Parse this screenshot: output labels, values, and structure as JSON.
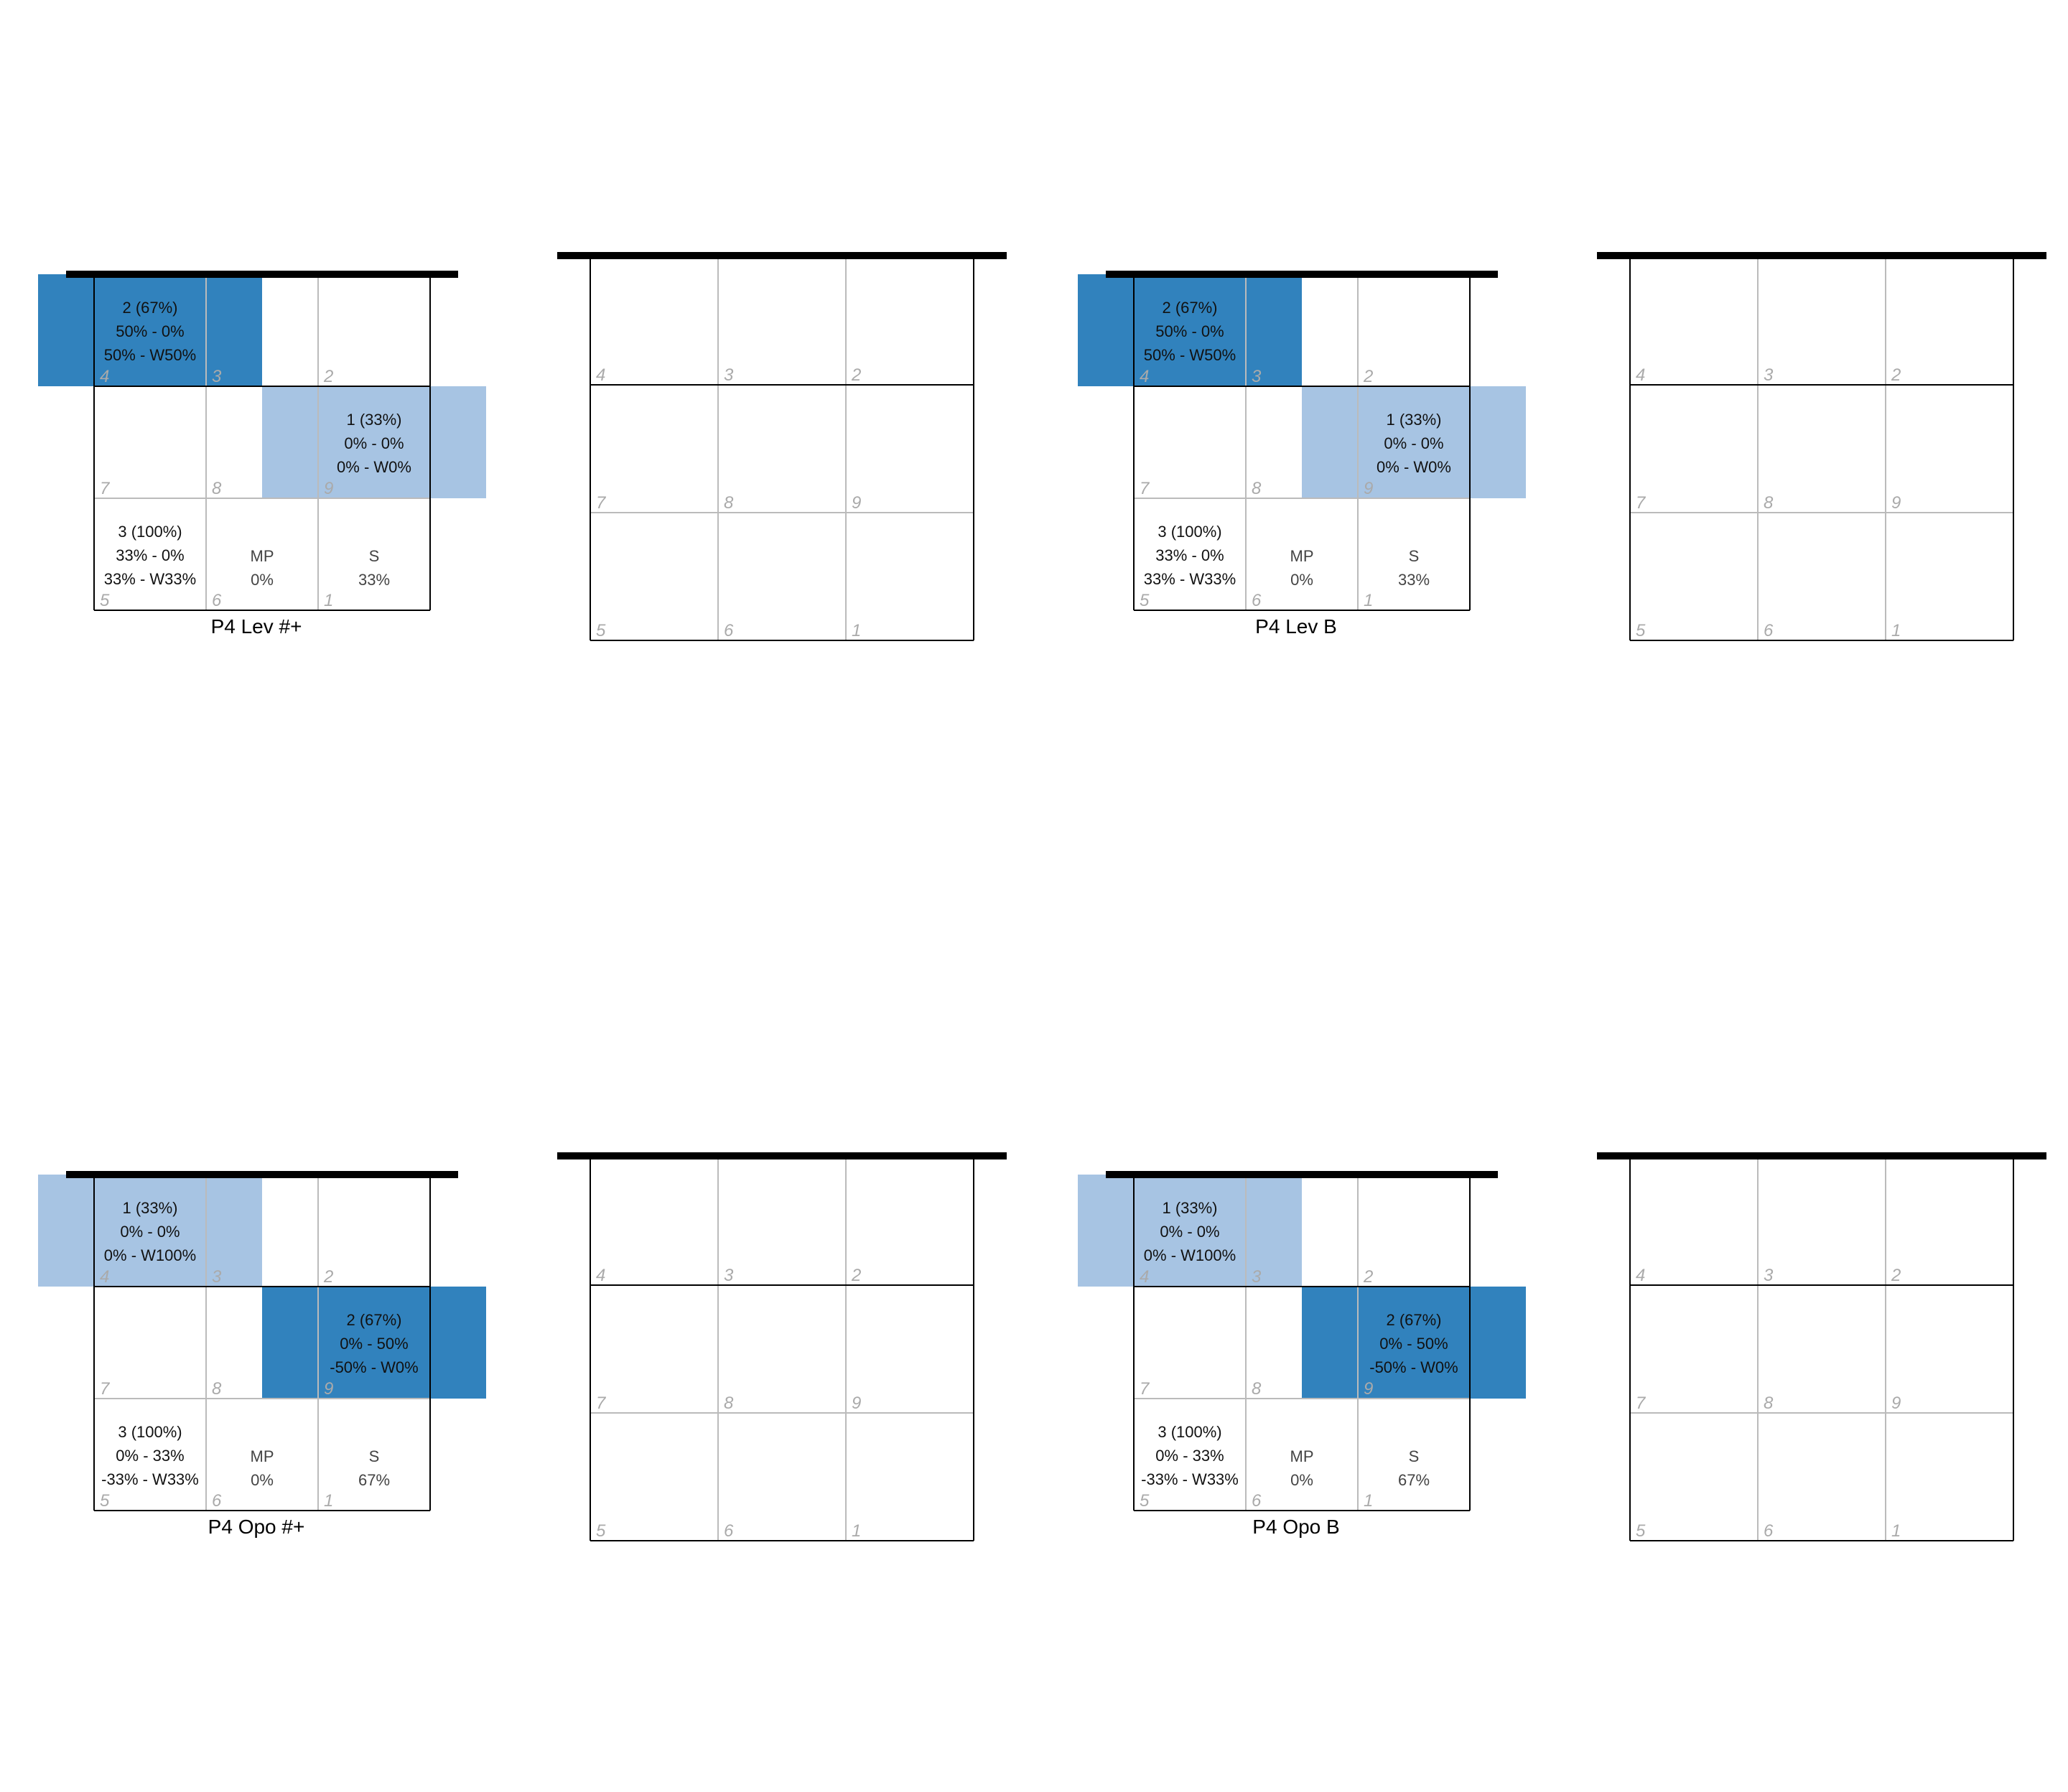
{
  "colors": {
    "dark_blue": "#3182bd",
    "light_blue": "#a7c4e3",
    "thin_grid": "#bbbbbb",
    "outline": "#000000"
  },
  "chart_data": [
    {
      "type": "heatmap",
      "title": "P4 Lev #+",
      "zone_numbers": [
        "4",
        "3",
        "2",
        "7",
        "8",
        "9",
        "5",
        "6",
        "1"
      ],
      "highlighted_zones": [
        {
          "row": 0,
          "span": "left",
          "level": "dark",
          "lines": [
            "2 (67%)",
            "50% - 0%",
            "50% - W50%"
          ]
        },
        {
          "row": 1,
          "span": "right",
          "level": "light",
          "lines": [
            "1 (33%)",
            "0% - 0%",
            "0% - W0%"
          ]
        }
      ],
      "bottom_row": {
        "left": [
          "3 (100%)",
          "33% - 0%",
          "33% - W33%"
        ],
        "mid": [
          "MP",
          "0%"
        ],
        "right": [
          "S",
          "33%"
        ]
      }
    },
    {
      "type": "heatmap",
      "title": "",
      "zone_numbers": [
        "4",
        "3",
        "2",
        "7",
        "8",
        "9",
        "5",
        "6",
        "1"
      ]
    },
    {
      "type": "heatmap",
      "title": "P4 Lev B",
      "zone_numbers": [
        "4",
        "3",
        "2",
        "7",
        "8",
        "9",
        "5",
        "6",
        "1"
      ],
      "highlighted_zones": [
        {
          "row": 0,
          "span": "left",
          "level": "dark",
          "lines": [
            "2 (67%)",
            "50% - 0%",
            "50% - W50%"
          ]
        },
        {
          "row": 1,
          "span": "right",
          "level": "light",
          "lines": [
            "1 (33%)",
            "0% - 0%",
            "0% - W0%"
          ]
        }
      ],
      "bottom_row": {
        "left": [
          "3 (100%)",
          "33% - 0%",
          "33% - W33%"
        ],
        "mid": [
          "MP",
          "0%"
        ],
        "right": [
          "S",
          "33%"
        ]
      }
    },
    {
      "type": "heatmap",
      "title": "",
      "zone_numbers": [
        "4",
        "3",
        "2",
        "7",
        "8",
        "9",
        "5",
        "6",
        "1"
      ]
    },
    {
      "type": "heatmap",
      "title": "P4 Opo #+",
      "zone_numbers": [
        "4",
        "3",
        "2",
        "7",
        "8",
        "9",
        "5",
        "6",
        "1"
      ],
      "highlighted_zones": [
        {
          "row": 0,
          "span": "left",
          "level": "light",
          "lines": [
            "1 (33%)",
            "0% - 0%",
            "0% - W100%"
          ]
        },
        {
          "row": 1,
          "span": "right",
          "level": "dark",
          "lines": [
            "2 (67%)",
            "0% - 50%",
            "-50% - W0%"
          ]
        }
      ],
      "bottom_row": {
        "left": [
          "3 (100%)",
          "0% - 33%",
          "-33% - W33%"
        ],
        "mid": [
          "MP",
          "0%"
        ],
        "right": [
          "S",
          "67%"
        ]
      }
    },
    {
      "type": "heatmap",
      "title": "",
      "zone_numbers": [
        "4",
        "3",
        "2",
        "7",
        "8",
        "9",
        "5",
        "6",
        "1"
      ]
    },
    {
      "type": "heatmap",
      "title": "P4 Opo B",
      "zone_numbers": [
        "4",
        "3",
        "2",
        "7",
        "8",
        "9",
        "5",
        "6",
        "1"
      ],
      "highlighted_zones": [
        {
          "row": 0,
          "span": "left",
          "level": "light",
          "lines": [
            "1 (33%)",
            "0% - 0%",
            "0% - W100%"
          ]
        },
        {
          "row": 1,
          "span": "right",
          "level": "dark",
          "lines": [
            "2 (67%)",
            "0% - 50%",
            "-50% - W0%"
          ]
        }
      ],
      "bottom_row": {
        "left": [
          "3 (100%)",
          "0% - 33%",
          "-33% - W33%"
        ],
        "mid": [
          "MP",
          "0%"
        ],
        "right": [
          "S",
          "67%"
        ]
      }
    },
    {
      "type": "heatmap",
      "title": "",
      "zone_numbers": [
        "4",
        "3",
        "2",
        "7",
        "8",
        "9",
        "5",
        "6",
        "1"
      ]
    }
  ]
}
